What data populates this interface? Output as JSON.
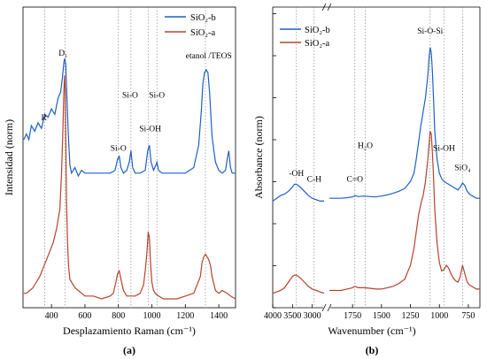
{
  "chart_data": [
    {
      "type": "line",
      "caption": "(a)",
      "xlabel": "Desplazamiento Raman (cm⁻¹)",
      "ylabel": "Intensidad (norm)",
      "xlim": [
        230,
        1500
      ],
      "ylim": [
        0,
        1
      ],
      "xticks": [
        400,
        600,
        800,
        1000,
        1200,
        1400
      ],
      "xtick_labels": [
        "400",
        "600",
        "800",
        "1000",
        "1200",
        "1400"
      ],
      "legend": {
        "position": "top-right",
        "entries": [
          "SiO₂-b",
          "SiO₂-a"
        ]
      },
      "vlines": [
        360,
        480,
        800,
        875,
        980,
        1030,
        1320
      ],
      "series": [
        {
          "name": "SiO₂-b",
          "color": "#1f5fc8",
          "x": [
            235,
            250,
            265,
            280,
            300,
            320,
            340,
            360,
            380,
            400,
            420,
            440,
            455,
            465,
            475,
            480,
            485,
            490,
            500,
            510,
            520,
            540,
            560,
            580,
            600,
            650,
            700,
            750,
            780,
            795,
            805,
            815,
            830,
            850,
            865,
            875,
            885,
            900,
            930,
            960,
            975,
            985,
            995,
            1010,
            1025,
            1030,
            1040,
            1060,
            1100,
            1150,
            1200,
            1250,
            1280,
            1295,
            1305,
            1315,
            1325,
            1335,
            1345,
            1360,
            1380,
            1400,
            1420,
            1440,
            1450,
            1460,
            1470,
            1480,
            1500
          ],
          "y": [
            0.57,
            0.59,
            0.57,
            0.62,
            0.6,
            0.63,
            0.61,
            0.66,
            0.65,
            0.68,
            0.66,
            0.72,
            0.74,
            0.79,
            0.85,
            0.86,
            0.84,
            0.76,
            0.6,
            0.48,
            0.45,
            0.47,
            0.44,
            0.46,
            0.45,
            0.45,
            0.45,
            0.45,
            0.46,
            0.5,
            0.51,
            0.47,
            0.45,
            0.46,
            0.49,
            0.53,
            0.47,
            0.45,
            0.45,
            0.46,
            0.53,
            0.55,
            0.49,
            0.46,
            0.48,
            0.49,
            0.46,
            0.45,
            0.45,
            0.45,
            0.45,
            0.47,
            0.55,
            0.67,
            0.77,
            0.81,
            0.82,
            0.81,
            0.74,
            0.58,
            0.49,
            0.46,
            0.45,
            0.46,
            0.5,
            0.53,
            0.47,
            0.45,
            0.45
          ]
        },
        {
          "name": "SiO₂-a",
          "color": "#b5432c",
          "x": [
            235,
            250,
            270,
            290,
            310,
            330,
            350,
            370,
            390,
            410,
            430,
            450,
            460,
            468,
            474,
            478,
            482,
            486,
            490,
            496,
            502,
            510,
            520,
            530,
            540,
            560,
            580,
            600,
            650,
            700,
            750,
            770,
            785,
            795,
            805,
            815,
            830,
            850,
            870,
            900,
            930,
            950,
            960,
            970,
            978,
            985,
            992,
            1000,
            1010,
            1020,
            1040,
            1070,
            1100,
            1150,
            1200,
            1250,
            1290,
            1300,
            1310,
            1320,
            1330,
            1340,
            1350,
            1360,
            1380,
            1400,
            1420,
            1450,
            1470,
            1500
          ],
          "y": [
            0.02,
            0.02,
            0.03,
            0.04,
            0.06,
            0.08,
            0.11,
            0.14,
            0.17,
            0.2,
            0.25,
            0.32,
            0.45,
            0.6,
            0.74,
            0.8,
            0.75,
            0.55,
            0.35,
            0.2,
            0.12,
            0.07,
            0.06,
            0.05,
            0.04,
            0.03,
            0.02,
            0.01,
            0.01,
            0.0,
            0.01,
            0.02,
            0.06,
            0.09,
            0.1,
            0.07,
            0.03,
            0.01,
            0.01,
            0.01,
            0.02,
            0.05,
            0.1,
            0.16,
            0.24,
            0.22,
            0.13,
            0.06,
            0.03,
            0.02,
            0.01,
            0.0,
            0.0,
            0.0,
            0.01,
            0.02,
            0.08,
            0.13,
            0.15,
            0.16,
            0.15,
            0.14,
            0.12,
            0.08,
            0.03,
            0.02,
            0.03,
            0.02,
            0.01,
            0.0
          ]
        }
      ],
      "annotations": [
        {
          "text": "R",
          "x": 355,
          "y": 0.64
        },
        {
          "text": "D₁",
          "x": 470,
          "y": 0.87
        },
        {
          "text": "Si-O",
          "x": 800,
          "y": 0.53
        },
        {
          "text": "Si-O",
          "x": 870,
          "y": 0.72
        },
        {
          "text": "Si-OH",
          "x": 990,
          "y": 0.6
        },
        {
          "text": "Si-O",
          "x": 1030,
          "y": 0.72
        },
        {
          "text": "etanol /TEOS",
          "x": 1340,
          "y": 0.86
        }
      ]
    },
    {
      "type": "line",
      "caption": "(b)",
      "xlabel": "Wavenumber (cm⁻¹)",
      "ylabel": "Absorbance (norm)",
      "broken_axis": true,
      "segments": [
        {
          "xlim": [
            4000,
            2700
          ],
          "xticks": [
            4000,
            3500,
            3000
          ],
          "xtick_labels": [
            "4000",
            "3500",
            "3000"
          ]
        },
        {
          "xlim": [
            1950,
            650
          ],
          "xticks": [
            1750,
            1500,
            1250,
            1000,
            750
          ],
          "xtick_labels": [
            "1750",
            "1500",
            "1250",
            "1000",
            "750"
          ]
        }
      ],
      "ylim": [
        0,
        1
      ],
      "legend": {
        "position": "top-left",
        "entries": [
          "SiO₂-b",
          "SiO₂-a"
        ]
      },
      "vlines": [
        3400,
        2950,
        1730,
        1640,
        1080,
        960,
        800
      ],
      "series": [
        {
          "name": "SiO₂-b",
          "color": "#1f5fc8",
          "x": [
            4000,
            3900,
            3800,
            3700,
            3600,
            3500,
            3450,
            3400,
            3350,
            3300,
            3200,
            3100,
            3000,
            2900,
            2800,
            2700,
            1950,
            1900,
            1850,
            1800,
            1750,
            1730,
            1700,
            1650,
            1600,
            1550,
            1500,
            1450,
            1400,
            1350,
            1300,
            1250,
            1220,
            1200,
            1180,
            1160,
            1140,
            1120,
            1100,
            1090,
            1080,
            1070,
            1060,
            1050,
            1040,
            1020,
            1000,
            980,
            960,
            940,
            920,
            900,
            880,
            860,
            840,
            820,
            800,
            780,
            760,
            740,
            720,
            700,
            680,
            650
          ],
          "y": [
            0.35,
            0.36,
            0.37,
            0.375,
            0.385,
            0.4,
            0.41,
            0.41,
            0.405,
            0.4,
            0.385,
            0.37,
            0.36,
            0.355,
            0.35,
            0.35,
            0.36,
            0.36,
            0.36,
            0.362,
            0.365,
            0.37,
            0.366,
            0.368,
            0.366,
            0.365,
            0.368,
            0.372,
            0.378,
            0.385,
            0.395,
            0.42,
            0.45,
            0.5,
            0.56,
            0.62,
            0.67,
            0.72,
            0.8,
            0.86,
            0.9,
            0.88,
            0.81,
            0.71,
            0.6,
            0.5,
            0.45,
            0.43,
            0.42,
            0.415,
            0.41,
            0.405,
            0.4,
            0.395,
            0.39,
            0.4,
            0.415,
            0.405,
            0.385,
            0.375,
            0.37,
            0.365,
            0.36,
            0.36
          ]
        },
        {
          "name": "SiO₂-a",
          "color": "#b5432c",
          "x": [
            4000,
            3900,
            3800,
            3700,
            3600,
            3500,
            3450,
            3400,
            3350,
            3300,
            3200,
            3100,
            3000,
            2900,
            2800,
            2700,
            1950,
            1900,
            1850,
            1800,
            1750,
            1730,
            1700,
            1650,
            1600,
            1550,
            1500,
            1450,
            1400,
            1350,
            1300,
            1250,
            1220,
            1200,
            1180,
            1160,
            1140,
            1120,
            1100,
            1090,
            1080,
            1070,
            1060,
            1050,
            1040,
            1020,
            1000,
            980,
            960,
            940,
            920,
            900,
            880,
            860,
            840,
            820,
            800,
            780,
            760,
            740,
            720,
            700,
            680,
            650
          ],
          "y": [
            0.02,
            0.025,
            0.03,
            0.04,
            0.06,
            0.08,
            0.085,
            0.085,
            0.08,
            0.075,
            0.06,
            0.045,
            0.035,
            0.03,
            0.025,
            0.02,
            0.03,
            0.03,
            0.03,
            0.035,
            0.04,
            0.045,
            0.04,
            0.04,
            0.038,
            0.035,
            0.035,
            0.04,
            0.045,
            0.055,
            0.07,
            0.12,
            0.18,
            0.24,
            0.3,
            0.34,
            0.37,
            0.42,
            0.5,
            0.55,
            0.6,
            0.59,
            0.52,
            0.43,
            0.32,
            0.2,
            0.13,
            0.1,
            0.105,
            0.12,
            0.11,
            0.09,
            0.075,
            0.065,
            0.06,
            0.08,
            0.12,
            0.09,
            0.06,
            0.05,
            0.045,
            0.04,
            0.035,
            0.035
          ]
        }
      ],
      "annotations": [
        {
          "text": "-OH",
          "x": 3400,
          "y": 0.44
        },
        {
          "text": "C-H",
          "x": 2950,
          "y": 0.42
        },
        {
          "text": "C=O",
          "x": 1730,
          "y": 0.42
        },
        {
          "text": "H₂O",
          "x": 1640,
          "y": 0.54
        },
        {
          "text": "Si-O-Si",
          "x": 1080,
          "y": 0.95
        },
        {
          "text": "Si-OH",
          "x": 960,
          "y": 0.53
        },
        {
          "text": "SiO₄",
          "x": 800,
          "y": 0.46
        }
      ]
    }
  ]
}
